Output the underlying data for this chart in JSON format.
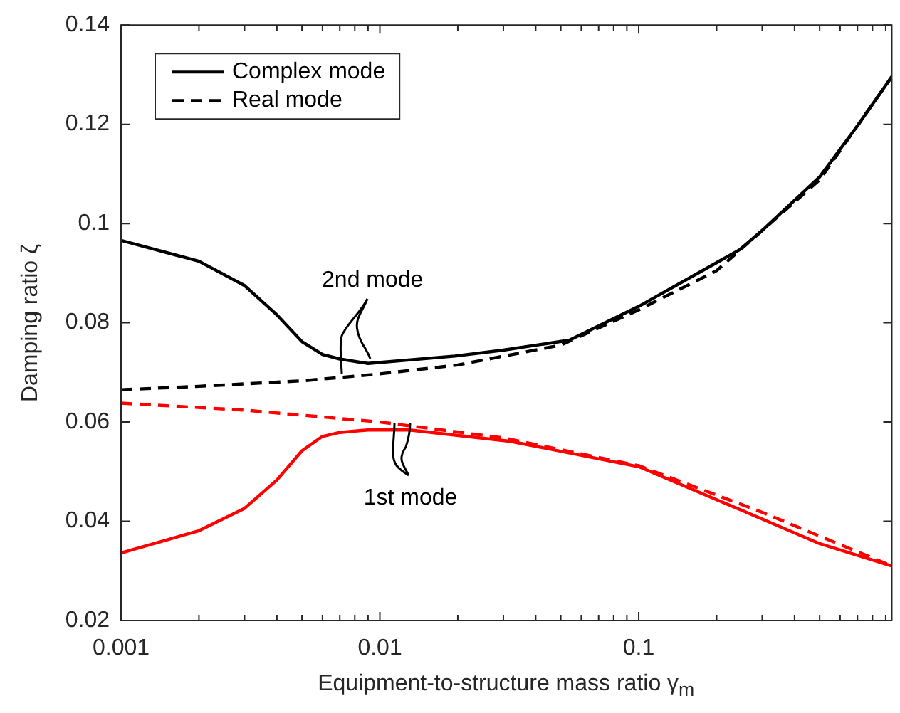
{
  "chart_data": {
    "type": "line",
    "xlabel": "Equipment-to-structure mass ratio γ$_{m}$",
    "ylabel": "Damping ratio ζ",
    "log": "x",
    "grid": false,
    "legend": "top left",
    "marker": "none",
    "xlim": [
      0.001,
      0.95
    ],
    "ylim": [
      0.02,
      0.14
    ],
    "xticks": [
      0.001,
      {
        "value": 0.002,
        "label": null
      },
      {
        "value": 0.003,
        "label": null
      },
      {
        "value": 0.004,
        "label": null
      },
      {
        "value": 0.005,
        "label": null
      },
      {
        "value": 0.006,
        "label": null
      },
      {
        "value": 0.007,
        "label": null
      },
      {
        "value": 0.008,
        "label": null
      },
      {
        "value": 0.009,
        "label": null
      },
      0.01,
      {
        "value": 0.02,
        "label": null
      },
      {
        "value": 0.03,
        "label": null
      },
      {
        "value": 0.04,
        "label": null
      },
      {
        "value": 0.05,
        "label": null
      },
      {
        "value": 0.06,
        "label": null
      },
      {
        "value": 0.07,
        "label": null
      },
      {
        "value": 0.08,
        "label": null
      },
      {
        "value": 0.09,
        "label": null
      },
      0.1,
      {
        "value": 0.2,
        "label": null
      },
      {
        "value": 0.3,
        "label": null
      },
      {
        "value": 0.4,
        "label": null
      },
      {
        "value": 0.5,
        "label": null
      },
      {
        "value": 0.6,
        "label": null
      },
      {
        "value": 0.7,
        "label": null
      },
      {
        "value": 0.8,
        "label": null
      },
      {
        "value": 0.9,
        "label": null
      }
    ],
    "yticks": [
      0.02,
      0.04,
      0.06,
      0.08,
      0.1,
      0.12,
      0.14
    ],
    "series": [
      {
        "name": "Complex mode",
        "color": "#000000",
        "line_style": "solid",
        "x": [
          0.001,
          0.002,
          0.003,
          0.004,
          0.005,
          0.006,
          0.007,
          0.009,
          0.0195,
          0.03,
          0.054,
          0.1,
          0.245,
          0.3,
          0.5,
          0.7,
          0.95
        ],
        "values": [
          0.0966,
          0.0924,
          0.0875,
          0.0816,
          0.0762,
          0.0736,
          0.0727,
          0.0718,
          0.0733,
          0.0745,
          0.0765,
          0.0833,
          0.0947,
          0.0986,
          0.1094,
          0.1197,
          0.1296
        ]
      },
      {
        "name": "Real mode",
        "color": "#000000",
        "line_style": "dashed",
        "x": [
          0.001,
          0.002,
          0.005,
          0.01,
          0.02,
          0.05,
          0.1,
          0.2,
          0.5,
          0.95
        ],
        "values": [
          0.0665,
          0.0672,
          0.0683,
          0.0697,
          0.0715,
          0.0755,
          0.0826,
          0.0905,
          0.1088,
          0.1296
        ]
      },
      {
        "color": "#ff0000",
        "line_style": "solid",
        "x": [
          0.001,
          0.002,
          0.003,
          0.004,
          0.005,
          0.006,
          0.007,
          0.009,
          0.013,
          0.032,
          0.1,
          0.245,
          0.5,
          0.95
        ],
        "values": [
          0.0336,
          0.0381,
          0.0426,
          0.0483,
          0.0542,
          0.0571,
          0.0579,
          0.0584,
          0.0584,
          0.0561,
          0.051,
          0.0424,
          0.0355,
          0.031
        ]
      },
      {
        "color": "#ff0000",
        "line_style": "dashed",
        "x": [
          0.001,
          0.003,
          0.01,
          0.03,
          0.1,
          0.3,
          0.95
        ],
        "values": [
          0.0638,
          0.0624,
          0.06,
          0.0568,
          0.0512,
          0.0418,
          0.031
        ]
      }
    ],
    "annotations": [
      {
        "text": "2nd mode",
        "x": 0.007,
        "y": 0.0688
      },
      {
        "text": "1st mode",
        "x": 0.011,
        "y": 0.0599
      }
    ]
  }
}
